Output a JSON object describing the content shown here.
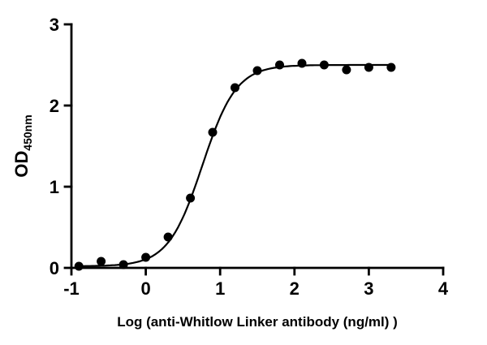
{
  "figure": {
    "background": "#ffffff"
  },
  "chart_data": {
    "type": "scatter",
    "title": "",
    "xlabel": "Log (anti-Whitlow Linker antibody (ng/ml) )",
    "ylabel_main": "OD",
    "ylabel_sub": "450nm",
    "xlim": [
      -1,
      4
    ],
    "ylim": [
      0,
      3
    ],
    "x_ticks": [
      -1,
      0,
      1,
      2,
      3,
      4
    ],
    "y_ticks": [
      0,
      1,
      2,
      3
    ],
    "x": [
      -0.9,
      -0.6,
      -0.3,
      0,
      0.3,
      0.6,
      0.9,
      1.2,
      1.5,
      1.8,
      2.1,
      2.4,
      2.7,
      3,
      3.3
    ],
    "y": [
      0.02,
      0.08,
      0.04,
      0.13,
      0.38,
      0.86,
      1.67,
      2.22,
      2.43,
      2.5,
      2.52,
      2.5,
      2.44,
      2.47,
      2.47
    ],
    "marker": {
      "shape": "circle",
      "color": "#000000",
      "radius": 5.5
    },
    "line": {
      "color": "#000000",
      "width": 2.2
    },
    "fit": {
      "model": "4PL-sigmoid",
      "bottom": 0.02,
      "top": 2.5,
      "logEC50": 0.76,
      "hillslope": 1.9,
      "x_start": -0.93,
      "x_end": 3.3
    },
    "axis_color": "#000000",
    "grid": false,
    "legend": "none"
  }
}
